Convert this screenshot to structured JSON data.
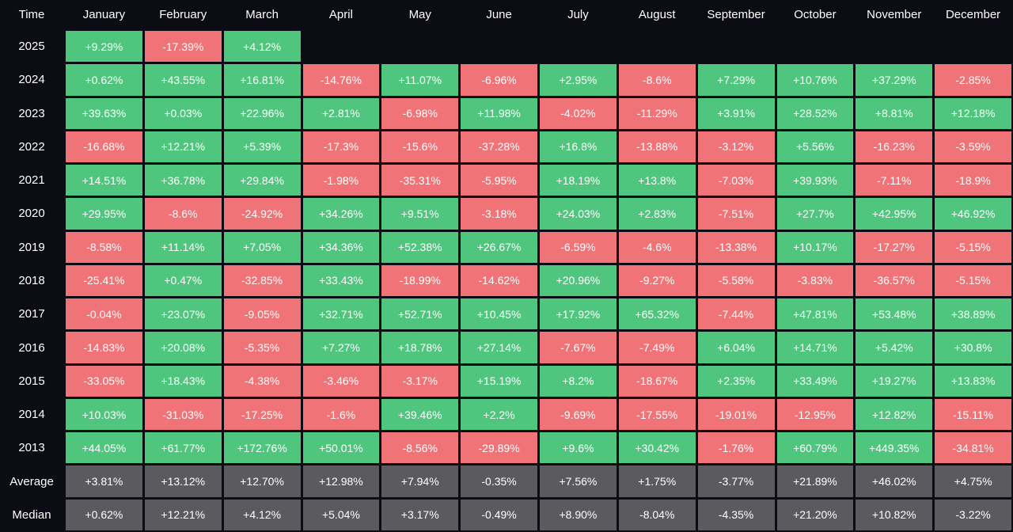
{
  "colors": {
    "positive": "#4fc57e",
    "negative": "#f07477",
    "summary": "#5b5b5f",
    "background": "#0b0c14"
  },
  "chart_data": {
    "type": "heatmap",
    "corner_label": "Time",
    "columns": [
      "January",
      "February",
      "March",
      "April",
      "May",
      "June",
      "July",
      "August",
      "September",
      "October",
      "November",
      "December"
    ],
    "rows": [
      {
        "label": "2025",
        "values": [
          "+9.29%",
          "-17.39%",
          "+4.12%",
          null,
          null,
          null,
          null,
          null,
          null,
          null,
          null,
          null
        ]
      },
      {
        "label": "2024",
        "values": [
          "+0.62%",
          "+43.55%",
          "+16.81%",
          "-14.76%",
          "+11.07%",
          "-6.96%",
          "+2.95%",
          "-8.6%",
          "+7.29%",
          "+10.76%",
          "+37.29%",
          "-2.85%"
        ]
      },
      {
        "label": "2023",
        "values": [
          "+39.63%",
          "+0.03%",
          "+22.96%",
          "+2.81%",
          "-6.98%",
          "+11.98%",
          "-4.02%",
          "-11.29%",
          "+3.91%",
          "+28.52%",
          "+8.81%",
          "+12.18%"
        ]
      },
      {
        "label": "2022",
        "values": [
          "-16.68%",
          "+12.21%",
          "+5.39%",
          "-17.3%",
          "-15.6%",
          "-37.28%",
          "+16.8%",
          "-13.88%",
          "-3.12%",
          "+5.56%",
          "-16.23%",
          "-3.59%"
        ]
      },
      {
        "label": "2021",
        "values": [
          "+14.51%",
          "+36.78%",
          "+29.84%",
          "-1.98%",
          "-35.31%",
          "-5.95%",
          "+18.19%",
          "+13.8%",
          "-7.03%",
          "+39.93%",
          "-7.11%",
          "-18.9%"
        ]
      },
      {
        "label": "2020",
        "values": [
          "+29.95%",
          "-8.6%",
          "-24.92%",
          "+34.26%",
          "+9.51%",
          "-3.18%",
          "+24.03%",
          "+2.83%",
          "-7.51%",
          "+27.7%",
          "+42.95%",
          "+46.92%"
        ]
      },
      {
        "label": "2019",
        "values": [
          "-8.58%",
          "+11.14%",
          "+7.05%",
          "+34.36%",
          "+52.38%",
          "+26.67%",
          "-6.59%",
          "-4.6%",
          "-13.38%",
          "+10.17%",
          "-17.27%",
          "-5.15%"
        ]
      },
      {
        "label": "2018",
        "values": [
          "-25.41%",
          "+0.47%",
          "-32.85%",
          "+33.43%",
          "-18.99%",
          "-14.62%",
          "+20.96%",
          "-9.27%",
          "-5.58%",
          "-3.83%",
          "-36.57%",
          "-5.15%"
        ]
      },
      {
        "label": "2017",
        "values": [
          "-0.04%",
          "+23.07%",
          "-9.05%",
          "+32.71%",
          "+52.71%",
          "+10.45%",
          "+17.92%",
          "+65.32%",
          "-7.44%",
          "+47.81%",
          "+53.48%",
          "+38.89%"
        ]
      },
      {
        "label": "2016",
        "values": [
          "-14.83%",
          "+20.08%",
          "-5.35%",
          "+7.27%",
          "+18.78%",
          "+27.14%",
          "-7.67%",
          "-7.49%",
          "+6.04%",
          "+14.71%",
          "+5.42%",
          "+30.8%"
        ]
      },
      {
        "label": "2015",
        "values": [
          "-33.05%",
          "+18.43%",
          "-4.38%",
          "-3.46%",
          "-3.17%",
          "+15.19%",
          "+8.2%",
          "-18.67%",
          "+2.35%",
          "+33.49%",
          "+19.27%",
          "+13.83%"
        ]
      },
      {
        "label": "2014",
        "values": [
          "+10.03%",
          "-31.03%",
          "-17.25%",
          "-1.6%",
          "+39.46%",
          "+2.2%",
          "-9.69%",
          "-17.55%",
          "-19.01%",
          "-12.95%",
          "+12.82%",
          "-15.11%"
        ]
      },
      {
        "label": "2013",
        "values": [
          "+44.05%",
          "+61.77%",
          "+172.76%",
          "+50.01%",
          "-8.56%",
          "-29.89%",
          "+9.6%",
          "+30.42%",
          "-1.76%",
          "+60.79%",
          "+449.35%",
          "-34.81%"
        ]
      }
    ],
    "summary_rows": [
      {
        "label": "Average",
        "values": [
          "+3.81%",
          "+13.12%",
          "+12.70%",
          "+12.98%",
          "+7.94%",
          "-0.35%",
          "+7.56%",
          "+1.75%",
          "-3.77%",
          "+21.89%",
          "+46.02%",
          "+4.75%"
        ]
      },
      {
        "label": "Median",
        "values": [
          "+0.62%",
          "+12.21%",
          "+4.12%",
          "+5.04%",
          "+3.17%",
          "-0.49%",
          "+8.90%",
          "-8.04%",
          "-4.35%",
          "+21.20%",
          "+10.82%",
          "-3.22%"
        ]
      }
    ]
  }
}
